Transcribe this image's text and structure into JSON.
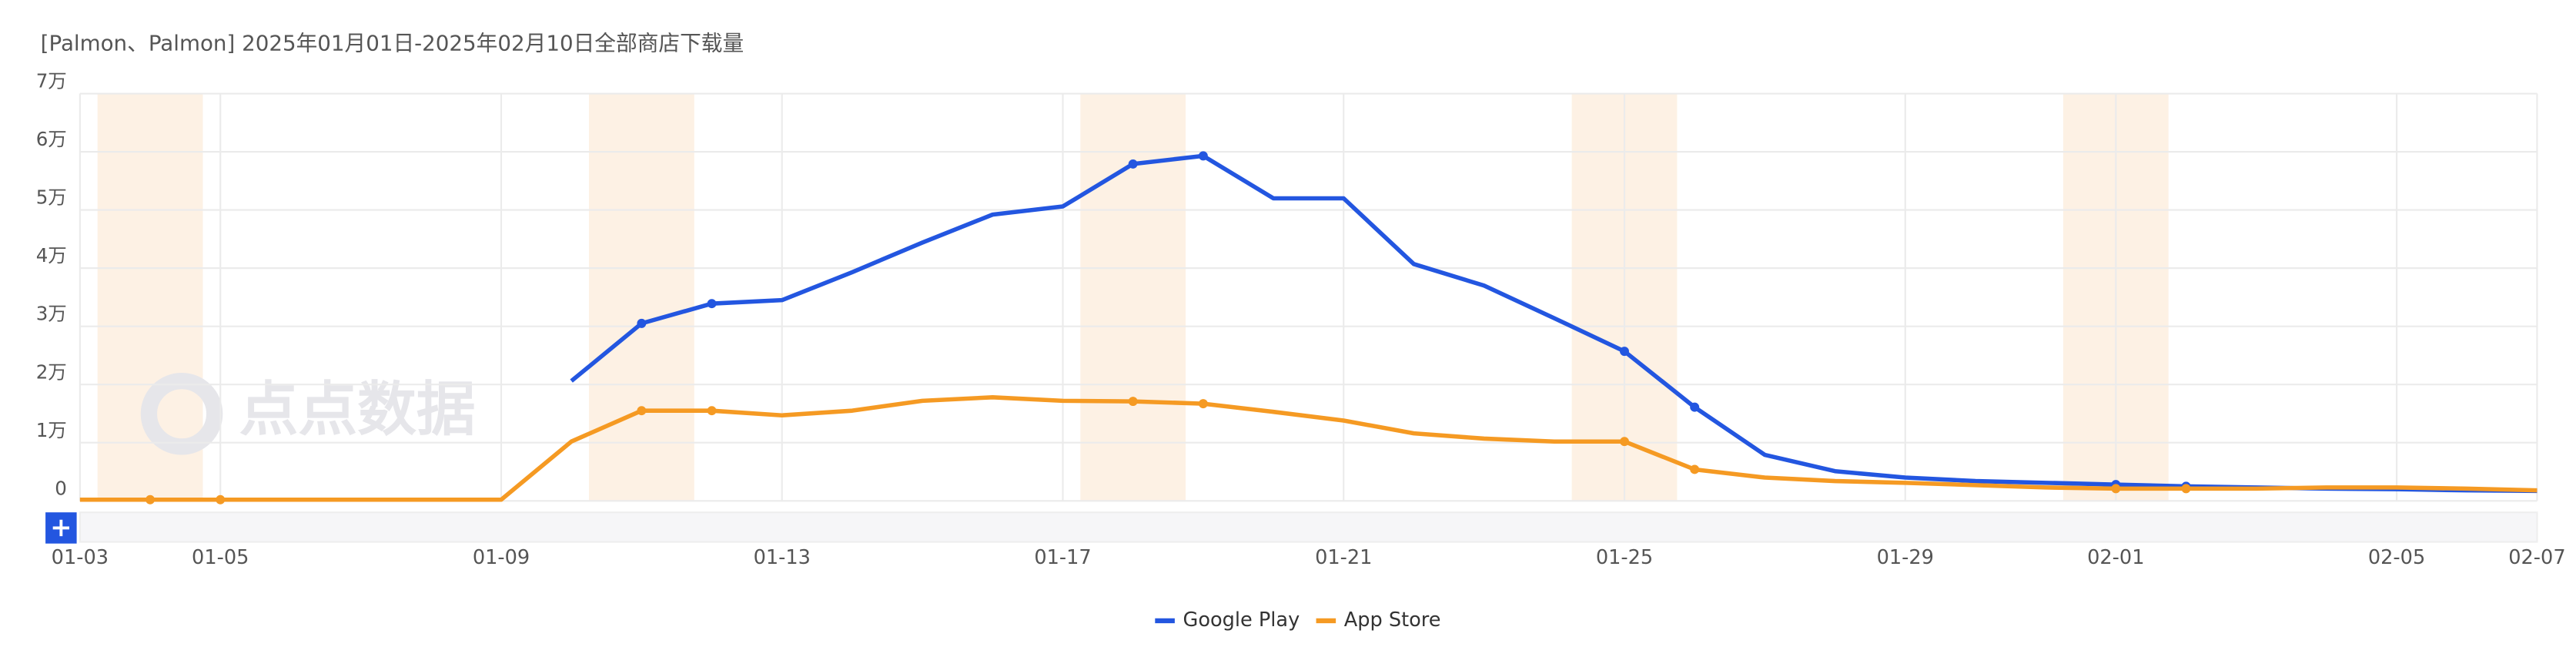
{
  "chart_data": {
    "type": "line",
    "title": "[Palmon、Palmon] 2025年01月01日-2025年02月10日全部商店下载量",
    "watermark": "点点数据",
    "categories": [
      "01-03",
      null,
      "01-05",
      null,
      null,
      null,
      "01-09",
      null,
      null,
      null,
      "01-13",
      null,
      null,
      null,
      "01-17",
      null,
      null,
      null,
      "01-21",
      null,
      null,
      null,
      "01-25",
      null,
      null,
      null,
      "01-29",
      null,
      null,
      "02-01",
      null,
      null,
      null,
      "02-05",
      null,
      "02-07"
    ],
    "series": [
      {
        "name": "Google Play",
        "color": "#2356e0",
        "values": [
          null,
          null,
          null,
          null,
          null,
          null,
          null,
          20600,
          30500,
          33900,
          34500,
          39300,
          44400,
          49200,
          50600,
          57900,
          59300,
          52000,
          52000,
          40700,
          37000,
          31400,
          25700,
          16100,
          7900,
          5100,
          4000,
          3400,
          3100,
          2800,
          2500,
          2300,
          2100,
          2000,
          1800,
          1700
        ]
      },
      {
        "name": "App Store",
        "color": "#f59a23",
        "values": [
          200,
          200,
          200,
          200,
          200,
          200,
          200,
          10200,
          15500,
          15500,
          14700,
          15500,
          17200,
          17800,
          17200,
          17100,
          16700,
          15300,
          13800,
          11600,
          10700,
          10200,
          10200,
          5400,
          4000,
          3400,
          3100,
          2700,
          2300,
          2100,
          2100,
          2100,
          2300,
          2300,
          2100,
          1800
        ]
      }
    ],
    "ylim": [
      0,
      70000
    ],
    "yticks": [
      0,
      {
        "value": 10000,
        "label": "1万"
      },
      {
        "value": 20000,
        "label": "2万"
      },
      {
        "value": 30000,
        "label": "3万"
      },
      {
        "value": 40000,
        "label": "4万"
      },
      {
        "value": 50000,
        "label": "5万"
      },
      {
        "value": 60000,
        "label": "6万"
      },
      {
        "value": 70000,
        "label": "7万"
      }
    ],
    "grid": true,
    "legend": "bottom"
  }
}
